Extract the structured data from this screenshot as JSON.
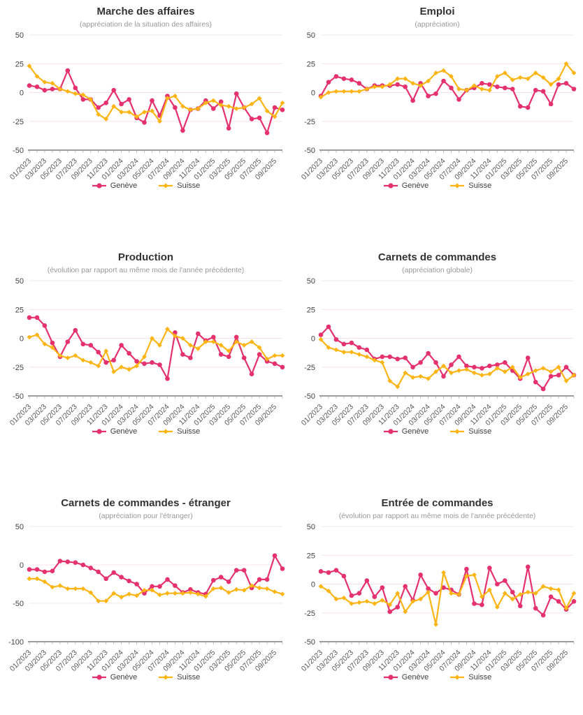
{
  "palette": {
    "geneve": "#e5326c",
    "suisse": "#fcb515",
    "grid": "#f8e3ec",
    "grid_top": "#ebebeb",
    "axis": "#9e9e9e",
    "point_tick": "#c0c0c0",
    "y_label_color": "#444444",
    "x_label_color": "#595959",
    "title_color": "#333333",
    "subtitle_color": "#999999",
    "legend_text_color": "#404040"
  },
  "x_tick_labels": [
    "01/2023",
    "03/2023",
    "05/2023",
    "07/2023",
    "09/2023",
    "11/2023",
    "01/2024",
    "03/2024",
    "05/2024",
    "07/2024",
    "09/2024",
    "11/2024",
    "01/2025",
    "03/2025",
    "05/2025",
    "07/2025",
    "09/2025"
  ],
  "legend": {
    "geneve": "Genève",
    "suisse": "Suisse"
  },
  "chart_data": [
    {
      "type": "line",
      "title": "Marche des affaires",
      "subtitle": "(appréciation de la situation des affaires)",
      "ylim": [
        -50,
        50
      ],
      "y_ticks": [
        50,
        25,
        0,
        -25,
        -50
      ],
      "grid": true,
      "legend_position": "bottom",
      "series": [
        {
          "name": "Genève",
          "color": "#e5326c",
          "marker": "circle",
          "values": [
            6,
            5,
            2,
            3,
            3,
            19,
            4,
            -6,
            -6,
            -13,
            -9,
            2,
            -10,
            -6,
            -22,
            -26,
            -7,
            -20,
            -3,
            -13,
            -33,
            -15,
            -14,
            -7,
            -14,
            -8,
            -31,
            -1,
            -13,
            -23,
            -22,
            -35,
            -13,
            -15
          ]
        },
        {
          "name": "Suisse",
          "color": "#fcb515",
          "marker": "diamond",
          "values": [
            23,
            14,
            9,
            8,
            3,
            1,
            -1,
            -2,
            -6,
            -19,
            -23,
            -12,
            -17,
            -17,
            -21,
            -17,
            -16,
            -25,
            -5,
            -3,
            -12,
            -15,
            -14,
            -9,
            -7,
            -11,
            -12,
            -14,
            -13,
            -10,
            -5,
            -16,
            -21,
            -9
          ]
        }
      ]
    },
    {
      "type": "line",
      "title": "Emploi",
      "subtitle": "(appréciation)",
      "ylim": [
        -50,
        50
      ],
      "y_ticks": [
        50,
        25,
        0,
        -25,
        -50
      ],
      "grid": true,
      "legend_position": "bottom",
      "series": [
        {
          "name": "Genève",
          "color": "#e5326c",
          "marker": "circle",
          "values": [
            -3,
            9,
            14,
            12,
            11,
            8,
            3,
            6,
            6,
            6,
            7,
            5,
            -7,
            8,
            -3,
            -1,
            10,
            4,
            -6,
            2,
            4,
            8,
            7,
            5,
            4,
            3,
            -12,
            -13,
            2,
            1,
            -10,
            7,
            8,
            3
          ]
        },
        {
          "name": "Suisse",
          "color": "#fcb515",
          "marker": "diamond",
          "values": [
            -4,
            0,
            1,
            1,
            1,
            1,
            3,
            5,
            5,
            7,
            12,
            12,
            8,
            6,
            10,
            17,
            19,
            14,
            3,
            2,
            6,
            3,
            2,
            14,
            17,
            11,
            13,
            12,
            17,
            13,
            7,
            12,
            25,
            17
          ]
        }
      ]
    },
    {
      "type": "line",
      "title": "Production",
      "subtitle": "(évolution par rapport au même mois de l'année précédente)",
      "ylim": [
        -50,
        50
      ],
      "y_ticks": [
        50,
        25,
        0,
        -25,
        -50
      ],
      "grid": true,
      "legend_position": "bottom",
      "series": [
        {
          "name": "Genève",
          "color": "#e5326c",
          "marker": "circle",
          "values": [
            18,
            18,
            11,
            -4,
            -16,
            -3,
            7,
            -5,
            -6,
            -12,
            -21,
            -19,
            -6,
            -13,
            -20,
            -22,
            -21,
            -23,
            -35,
            5,
            -14,
            -17,
            4,
            -2,
            1,
            -14,
            -16,
            1,
            -17,
            -31,
            -14,
            -20,
            -22,
            -25
          ]
        },
        {
          "name": "Suisse",
          "color": "#fcb515",
          "marker": "diamond",
          "values": [
            1,
            3,
            -5,
            -8,
            -15,
            -17,
            -15,
            -19,
            -21,
            -24,
            -11,
            -29,
            -25,
            -27,
            -24,
            -16,
            0,
            -6,
            8,
            2,
            0,
            -6,
            -9,
            -3,
            -3,
            -6,
            -11,
            -3,
            -6,
            -3,
            -8,
            -18,
            -15,
            -15
          ]
        }
      ]
    },
    {
      "type": "line",
      "title": "Carnets de commandes",
      "subtitle": "(appréciation globale)",
      "ylim": [
        -50,
        50
      ],
      "y_ticks": [
        50,
        25,
        0,
        -25,
        -50
      ],
      "grid": true,
      "legend_position": "bottom",
      "series": [
        {
          "name": "Genève",
          "color": "#e5326c",
          "marker": "circle",
          "values": [
            3,
            10,
            -1,
            -5,
            -4,
            -8,
            -10,
            -18,
            -16,
            -16,
            -18,
            -17,
            -25,
            -21,
            -13,
            -21,
            -33,
            -23,
            -16,
            -24,
            -25,
            -26,
            -24,
            -23,
            -21,
            -28,
            -35,
            -17,
            -38,
            -44,
            -33,
            -32,
            -25,
            -32
          ]
        },
        {
          "name": "Suisse",
          "color": "#fcb515",
          "marker": "diamond",
          "values": [
            -1,
            -8,
            -10,
            -12,
            -12,
            -14,
            -16,
            -19,
            -21,
            -37,
            -42,
            -30,
            -34,
            -33,
            -35,
            -29,
            -24,
            -30,
            -28,
            -27,
            -30,
            -32,
            -31,
            -26,
            -29,
            -25,
            -34,
            -31,
            -28,
            -26,
            -29,
            -25,
            -37,
            -32
          ]
        }
      ]
    },
    {
      "type": "line",
      "title": "Carnets de commandes - étranger",
      "subtitle": "(appréciation pour l'étranger)",
      "ylim": [
        -100,
        50
      ],
      "y_ticks": [
        50,
        0,
        -50,
        -100
      ],
      "grid": true,
      "legend_position": "bottom",
      "series": [
        {
          "name": "Genève",
          "color": "#e5326c",
          "marker": "circle",
          "values": [
            -6,
            -6,
            -9,
            -8,
            5,
            4,
            3,
            0,
            -4,
            -9,
            -18,
            -10,
            -16,
            -21,
            -25,
            -37,
            -28,
            -28,
            -19,
            -27,
            -36,
            -32,
            -36,
            -38,
            -20,
            -16,
            -22,
            -7,
            -7,
            -30,
            -19,
            -19,
            12,
            -5
          ]
        },
        {
          "name": "Suisse",
          "color": "#fcb515",
          "marker": "diamond",
          "values": [
            -18,
            -18,
            -22,
            -29,
            -27,
            -31,
            -31,
            -31,
            -36,
            -47,
            -47,
            -37,
            -42,
            -38,
            -40,
            -33,
            -33,
            -39,
            -37,
            -37,
            -37,
            -36,
            -38,
            -41,
            -31,
            -30,
            -36,
            -32,
            -33,
            -27,
            -30,
            -31,
            -35,
            -38
          ]
        }
      ]
    },
    {
      "type": "line",
      "title": "Entrée de commandes",
      "subtitle": "(évolution par rapport au même mois de l'année précédente)",
      "ylim": [
        -50,
        50
      ],
      "y_ticks": [
        50,
        25,
        0,
        -25,
        -50
      ],
      "grid": true,
      "legend_position": "bottom",
      "series": [
        {
          "name": "Genève",
          "color": "#e5326c",
          "marker": "circle",
          "values": [
            11,
            10,
            12,
            7,
            -10,
            -8,
            3,
            -11,
            -3,
            -24,
            -20,
            -2,
            -14,
            8,
            -4,
            -8,
            -3,
            -5,
            -9,
            13,
            -17,
            -18,
            14,
            0,
            3,
            -7,
            -19,
            15,
            -21,
            -27,
            -11,
            -15,
            -22,
            -15
          ]
        },
        {
          "name": "Suisse",
          "color": "#fcb515",
          "marker": "diamond",
          "values": [
            -2,
            -6,
            -13,
            -12,
            -17,
            -16,
            -15,
            -17,
            -14,
            -18,
            -8,
            -24,
            -15,
            -13,
            -7,
            -35,
            10,
            -8,
            -9,
            7,
            8,
            -11,
            -5,
            -20,
            -8,
            -13,
            -9,
            -7,
            -8,
            -2,
            -4,
            -5,
            -21,
            -8
          ]
        }
      ]
    }
  ]
}
